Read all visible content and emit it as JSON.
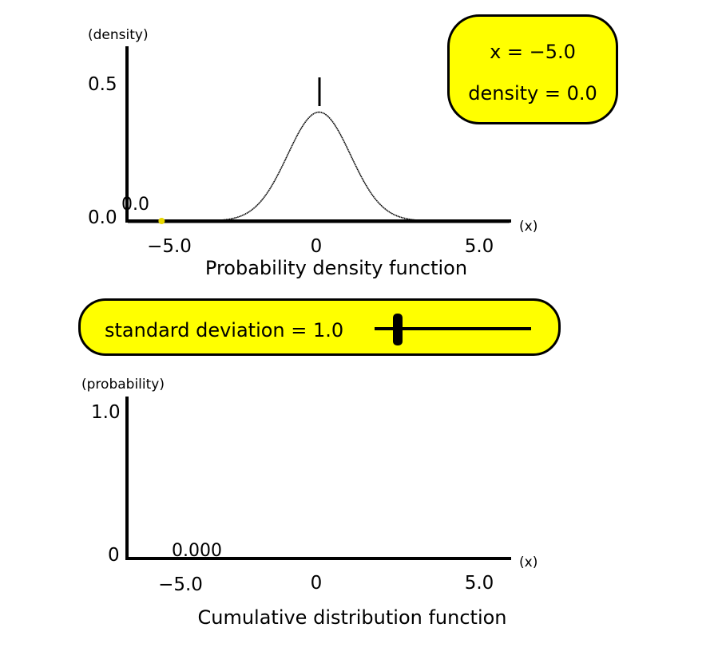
{
  "info_box": {
    "x_text": "x = −5.0",
    "density_text": "density = 0.0"
  },
  "slider": {
    "label": "standard deviation = 1.0",
    "value_fraction": 0.15
  },
  "chart_data": [
    {
      "type": "line",
      "title": "Probability density function",
      "xlabel": "(x)",
      "ylabel": "(density)",
      "xlim": [
        -6.1,
        6.1
      ],
      "ylim": [
        0,
        0.5
      ],
      "y_ticks": [
        "0.5",
        "0.0"
      ],
      "x_ticks": [
        {
          "value": -5,
          "label": "−5.0"
        },
        {
          "value": 0,
          "label": "0"
        },
        {
          "value": 5,
          "label": "5.0"
        }
      ],
      "mean": 0,
      "std": 1.0,
      "cursor_x": -5.0,
      "cursor_value_label": "0.0",
      "cursor_color": "#e8d800",
      "grid": false
    },
    {
      "type": "line",
      "title": "Cumulative distribution function",
      "xlabel": "(x)",
      "ylabel": "(probability)",
      "xlim": [
        -6.1,
        6.1
      ],
      "ylim": [
        0,
        1.0
      ],
      "y_ticks": [
        "1.0",
        "0"
      ],
      "x_ticks": [
        {
          "value": -5,
          "label": "−5.0"
        },
        {
          "value": 0,
          "label": "0"
        },
        {
          "value": 5,
          "label": "5.0"
        }
      ],
      "cursor_x": -5.0,
      "cursor_value_label": "0.000",
      "grid": false
    }
  ],
  "colors": {
    "panel_fill": "#ffff00",
    "outline": "#000000",
    "axis": "#000000"
  }
}
